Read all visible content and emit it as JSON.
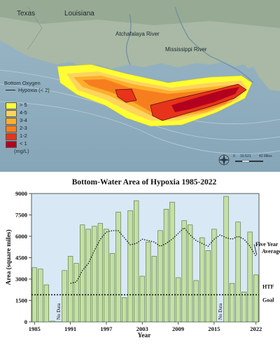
{
  "map": {
    "labels": {
      "texas": "Texas",
      "louisiana": "Louisiana",
      "atchafalaya": "Atchafalaya River",
      "mississippi": "Mississippi River"
    },
    "legend": {
      "title": "Bottom Oxygen",
      "hypoxia_line": "Hypoxia (< 2)",
      "classes": [
        {
          "label": "> 5",
          "color": "#ffff33"
        },
        {
          "label": "4-5",
          "color": "#fed45c"
        },
        {
          "label": "3-4",
          "color": "#fdae2c"
        },
        {
          "label": "2-3",
          "color": "#f77e1e"
        },
        {
          "label": "1-2",
          "color": "#e8331b"
        },
        {
          "label": "< 1",
          "color": "#b3001f"
        }
      ],
      "units": "(mg/L)"
    },
    "scale_bar": {
      "ticks": [
        "0",
        "10.5",
        "21",
        "42 Miles"
      ]
    }
  },
  "chart_data": {
    "type": "bar",
    "title": "Bottom-Water Area of Hypoxia 1985-2022",
    "xlabel": "Year",
    "ylabel": "Area (square miles)",
    "ylim": [
      0,
      9000
    ],
    "yticks": [
      0,
      1500,
      3000,
      4500,
      6000,
      7500,
      9000
    ],
    "ytick_labels": [
      "0",
      "1500",
      "3000",
      "4500",
      "6000",
      "7500",
      "9000"
    ],
    "xtick_labels": [
      "1985",
      "1991",
      "1997",
      "2003",
      "2009",
      "2015",
      "2022"
    ],
    "xtick_years": [
      1985,
      1991,
      1997,
      2003,
      2009,
      2015,
      2022
    ],
    "years": [
      1985,
      1986,
      1987,
      1988,
      1989,
      1990,
      1991,
      1992,
      1993,
      1994,
      1995,
      1996,
      1997,
      1998,
      1999,
      2000,
      2001,
      2002,
      2003,
      2004,
      2005,
      2006,
      2007,
      2008,
      2009,
      2010,
      2011,
      2012,
      2013,
      2014,
      2015,
      2016,
      2017,
      2018,
      2019,
      2020,
      2021,
      2022
    ],
    "values": [
      3800,
      3700,
      2600,
      50,
      null,
      3600,
      4600,
      4100,
      6800,
      6500,
      6700,
      6900,
      6500,
      4800,
      7700,
      1700,
      7800,
      8500,
      3200,
      5600,
      4600,
      6400,
      7900,
      8400,
      3100,
      7100,
      6800,
      2900,
      5900,
      5000,
      6500,
      null,
      8800,
      2700,
      7000,
      2100,
      6300,
      3300
    ],
    "no_data_label": "No Data",
    "five_year_average": {
      "label": "Five Year Average",
      "years": [
        1991,
        1992,
        1993,
        1994,
        1995,
        1996,
        1997,
        1998,
        1999,
        2000,
        2001,
        2002,
        2003,
        2004,
        2005,
        2006,
        2007,
        2008,
        2009,
        2010,
        2011,
        2012,
        2013,
        2014,
        2015,
        2016,
        2017,
        2018,
        2019,
        2020,
        2021,
        2022
      ],
      "values": [
        2700,
        2800,
        3600,
        4100,
        5000,
        5800,
        6300,
        6400,
        6400,
        5900,
        5400,
        5500,
        5800,
        5700,
        5600,
        5300,
        5500,
        5800,
        6200,
        6600,
        6100,
        5700,
        5500,
        5300,
        5800,
        6100,
        5900,
        5800,
        6000,
        5800,
        5300,
        4600
      ]
    },
    "goal": {
      "label": "HTF Goal",
      "value": 1900
    },
    "bar_color": "#c5e0a5",
    "bar_edge": "#4d6b3a",
    "plot_bg": "#d9e8f5",
    "grid": false
  }
}
